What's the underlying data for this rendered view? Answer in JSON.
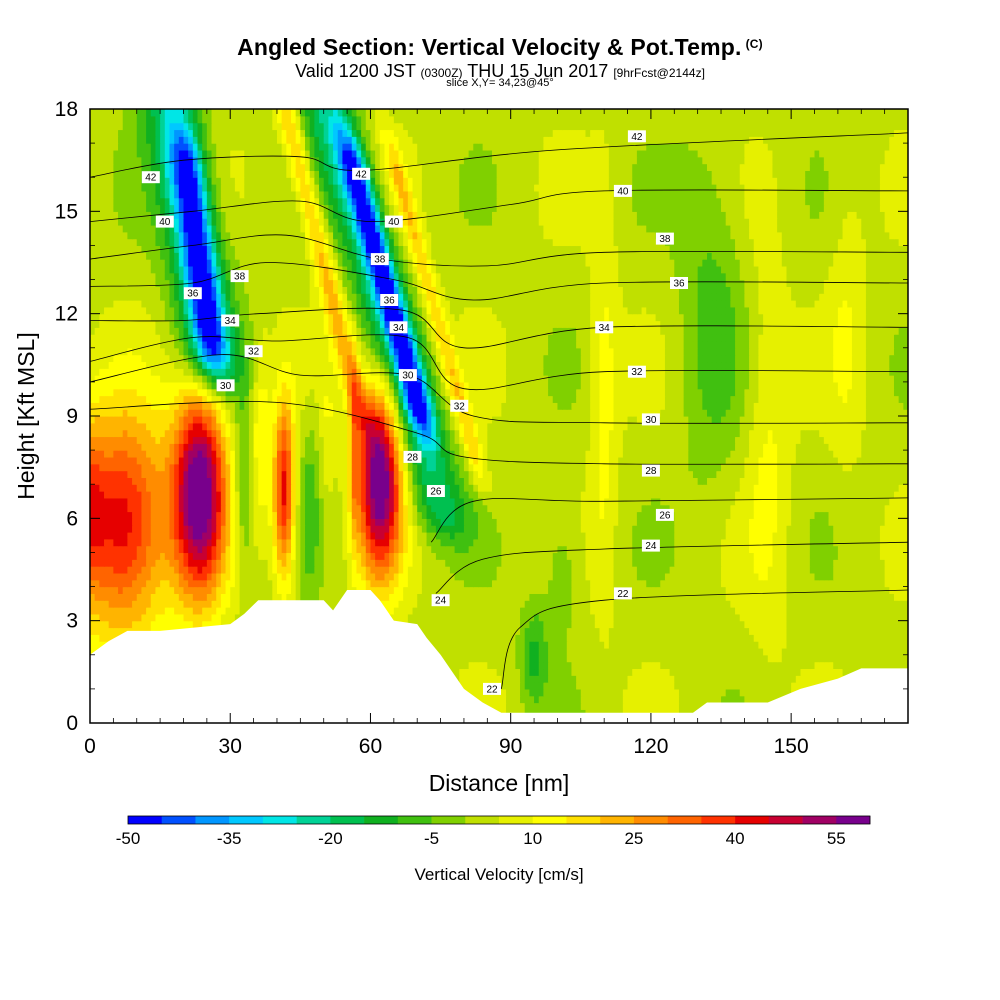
{
  "header": {
    "title": "Angled Section: Vertical Velocity & Pot.Temp.",
    "title_mark": "(C)",
    "subtitle_a": "Valid 1200 JST",
    "subtitle_b": "(0300Z)",
    "subtitle_c": "THU 15 Jun 2017",
    "subtitle_d": "[9hrFcst@2144z]",
    "slice": "slice X,Y= 34,23@45°"
  },
  "chart_data": {
    "type": "heatmap",
    "xlabel": "Distance [nm]",
    "ylabel": "Height [Kft MSL]",
    "xlim": [
      0,
      175
    ],
    "ylim": [
      0,
      18
    ],
    "x_ticks": [
      0,
      30,
      60,
      90,
      120,
      150
    ],
    "y_ticks": [
      0,
      3,
      6,
      9,
      12,
      15,
      18
    ],
    "grid": false,
    "colorbar": {
      "label": "Vertical Velocity [cm/s]",
      "placement": "bottom",
      "tick_labels": [
        "-50",
        "-35",
        "-20",
        "-5",
        "10",
        "25",
        "40",
        "55"
      ],
      "tick_values": [
        -50,
        -35,
        -20,
        -5,
        10,
        25,
        40,
        55
      ],
      "bins": [
        -50,
        -45,
        -40,
        -35,
        -30,
        -25,
        -20,
        -15,
        -10,
        -5,
        0,
        5,
        10,
        15,
        20,
        25,
        30,
        35,
        40,
        45,
        50,
        55,
        60
      ],
      "colors": [
        "#0000ff",
        "#0050ff",
        "#0096ff",
        "#00c8ff",
        "#00e6e6",
        "#00d296",
        "#00c050",
        "#10b020",
        "#40c010",
        "#80d000",
        "#c0e000",
        "#e6f000",
        "#ffff00",
        "#ffe000",
        "#ffb400",
        "#ff8c00",
        "#ff6400",
        "#ff3200",
        "#e60000",
        "#c80032",
        "#a00064",
        "#78008c"
      ]
    },
    "terrain": [
      [
        0,
        2.0
      ],
      [
        4,
        2.4
      ],
      [
        8,
        2.7
      ],
      [
        12,
        2.7
      ],
      [
        15,
        2.7
      ],
      [
        30,
        2.9
      ],
      [
        33,
        3.2
      ],
      [
        36,
        3.6
      ],
      [
        50,
        3.6
      ],
      [
        52,
        3.3
      ],
      [
        55,
        3.9
      ],
      [
        60,
        3.9
      ],
      [
        62,
        3.6
      ],
      [
        65,
        3.0
      ],
      [
        70,
        2.9
      ],
      [
        72,
        2.5
      ],
      [
        75,
        2.0
      ],
      [
        80,
        1.0
      ],
      [
        84,
        0.6
      ],
      [
        88,
        0.3
      ],
      [
        95,
        0.3
      ],
      [
        129,
        0.3
      ],
      [
        132,
        0.6
      ],
      [
        145,
        0.6
      ],
      [
        152,
        1.0
      ],
      [
        160,
        1.3
      ],
      [
        165,
        1.6
      ],
      [
        175,
        1.6
      ]
    ],
    "velocity_features": [
      {
        "x": 7,
        "y": 5.8,
        "value": 42
      },
      {
        "x": 23.5,
        "y": 6.8,
        "value": 58
      },
      {
        "x": 41.5,
        "y": 6.8,
        "value": 40
      },
      {
        "x": 62,
        "y": 7.2,
        "value": 58
      },
      {
        "x": 33,
        "y": 7.0,
        "value": -12
      },
      {
        "x": 36,
        "y": 8.5,
        "value": 15
      },
      {
        "x": 51,
        "y": 8.5,
        "value": 5
      },
      {
        "x": 24,
        "y": 13.5,
        "value": -32
      },
      {
        "x": 63,
        "y": 13.0,
        "value": -35
      },
      {
        "x": 95,
        "y": 2.0,
        "value": -15
      },
      {
        "x": 140,
        "y": 9.0,
        "value": 5
      },
      {
        "x": 130,
        "y": 11.5,
        "value": -8
      }
    ],
    "isentropes": [
      {
        "level": 22,
        "points": [
          [
            88,
            1.0
          ],
          [
            92,
            2.8
          ],
          [
            110,
            3.6
          ],
          [
            175,
            3.9
          ]
        ]
      },
      {
        "level": 24,
        "points": [
          [
            74,
            3.8
          ],
          [
            84,
            4.8
          ],
          [
            110,
            5.1
          ],
          [
            175,
            5.3
          ]
        ]
      },
      {
        "level": 26,
        "points": [
          [
            73,
            5.3
          ],
          [
            82,
            6.5
          ],
          [
            110,
            6.5
          ],
          [
            175,
            6.6
          ]
        ]
      },
      {
        "level": 28,
        "points": [
          [
            0,
            9.2
          ],
          [
            40,
            9.4
          ],
          [
            70,
            8.5
          ],
          [
            80,
            7.8
          ],
          [
            110,
            7.6
          ],
          [
            175,
            7.6
          ]
        ]
      },
      {
        "level": 30,
        "points": [
          [
            0,
            10.0
          ],
          [
            28,
            10.8
          ],
          [
            45,
            10.2
          ],
          [
            68,
            10.2
          ],
          [
            82,
            9.0
          ],
          [
            110,
            8.8
          ],
          [
            175,
            8.8
          ]
        ]
      },
      {
        "level": 32,
        "points": [
          [
            0,
            10.6
          ],
          [
            22,
            11.3
          ],
          [
            40,
            11.2
          ],
          [
            68,
            11.3
          ],
          [
            80,
            9.8
          ],
          [
            110,
            10.3
          ],
          [
            175,
            10.3
          ]
        ]
      },
      {
        "level": 34,
        "points": [
          [
            0,
            11.8
          ],
          [
            20,
            11.8
          ],
          [
            36,
            12.0
          ],
          [
            67,
            12.1
          ],
          [
            80,
            11.0
          ],
          [
            110,
            11.6
          ],
          [
            175,
            11.6
          ]
        ]
      },
      {
        "level": 36,
        "points": [
          [
            0,
            12.8
          ],
          [
            22,
            12.9
          ],
          [
            38,
            13.5
          ],
          [
            65,
            13.0
          ],
          [
            82,
            12.4
          ],
          [
            110,
            12.9
          ],
          [
            175,
            12.9
          ]
        ]
      },
      {
        "level": 38,
        "points": [
          [
            0,
            13.6
          ],
          [
            22,
            14.0
          ],
          [
            42,
            14.3
          ],
          [
            62,
            13.6
          ],
          [
            85,
            13.4
          ],
          [
            110,
            13.8
          ],
          [
            175,
            13.8
          ]
        ]
      },
      {
        "level": 40,
        "points": [
          [
            0,
            14.7
          ],
          [
            22,
            15.0
          ],
          [
            45,
            15.3
          ],
          [
            60,
            14.7
          ],
          [
            90,
            15.2
          ],
          [
            110,
            15.6
          ],
          [
            175,
            15.6
          ]
        ]
      },
      {
        "level": 42,
        "points": [
          [
            0,
            16.0
          ],
          [
            20,
            16.5
          ],
          [
            45,
            16.6
          ],
          [
            58,
            16.2
          ],
          [
            100,
            16.8
          ],
          [
            175,
            17.3
          ]
        ]
      }
    ],
    "contour_labels": [
      {
        "text": "42",
        "x": 13,
        "y": 16.0
      },
      {
        "text": "40",
        "x": 16,
        "y": 14.7
      },
      {
        "text": "38",
        "x": 32,
        "y": 13.1
      },
      {
        "text": "36",
        "x": 22,
        "y": 12.6
      },
      {
        "text": "34",
        "x": 30,
        "y": 11.8
      },
      {
        "text": "32",
        "x": 35,
        "y": 10.9
      },
      {
        "text": "30",
        "x": 29,
        "y": 9.9
      },
      {
        "text": "42",
        "x": 58,
        "y": 16.1
      },
      {
        "text": "40",
        "x": 65,
        "y": 14.7
      },
      {
        "text": "38",
        "x": 62,
        "y": 13.6
      },
      {
        "text": "36",
        "x": 64,
        "y": 12.4
      },
      {
        "text": "34",
        "x": 66,
        "y": 11.6
      },
      {
        "text": "30",
        "x": 68,
        "y": 10.2
      },
      {
        "text": "32",
        "x": 79,
        "y": 9.3
      },
      {
        "text": "28",
        "x": 69,
        "y": 7.8
      },
      {
        "text": "26",
        "x": 74,
        "y": 6.8
      },
      {
        "text": "24",
        "x": 75,
        "y": 3.6
      },
      {
        "text": "22",
        "x": 86,
        "y": 1.0
      },
      {
        "text": "42",
        "x": 117,
        "y": 17.2
      },
      {
        "text": "40",
        "x": 114,
        "y": 15.6
      },
      {
        "text": "38",
        "x": 123,
        "y": 14.2
      },
      {
        "text": "36",
        "x": 126,
        "y": 12.9
      },
      {
        "text": "34",
        "x": 110,
        "y": 11.6
      },
      {
        "text": "32",
        "x": 117,
        "y": 10.3
      },
      {
        "text": "30",
        "x": 120,
        "y": 8.9
      },
      {
        "text": "28",
        "x": 120,
        "y": 7.4
      },
      {
        "text": "26",
        "x": 123,
        "y": 6.1
      },
      {
        "text": "24",
        "x": 120,
        "y": 5.2
      },
      {
        "text": "22",
        "x": 114,
        "y": 3.8
      }
    ]
  }
}
